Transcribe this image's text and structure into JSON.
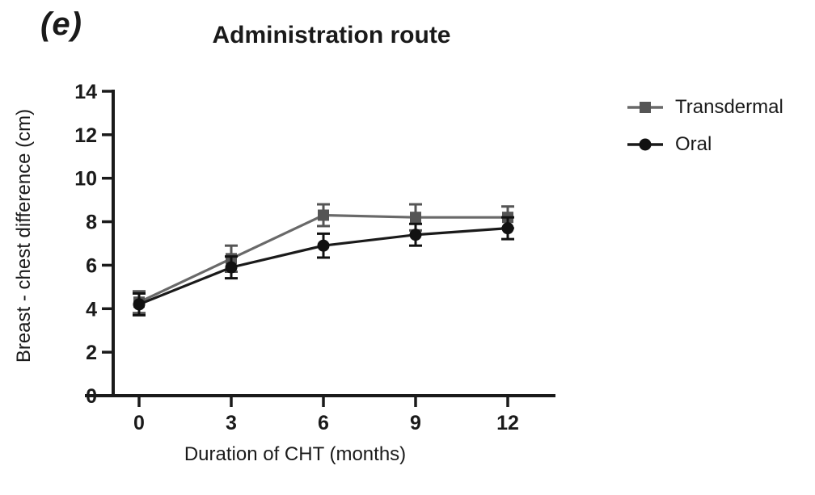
{
  "panel_label": "(e)",
  "chart_data": {
    "type": "line",
    "title": "Administration route",
    "xlabel": "Duration of CHT (months)",
    "ylabel": "Breast - chest difference (cm)",
    "x": [
      0,
      3,
      6,
      9,
      12
    ],
    "xticks": [
      0,
      3,
      6,
      9,
      12
    ],
    "yticks": [
      0,
      2,
      4,
      6,
      8,
      10,
      12,
      14
    ],
    "xlim": [
      0,
      12
    ],
    "ylim": [
      0,
      14
    ],
    "grid": false,
    "legend_position": "right-top",
    "axis_color": "#1a1a1a",
    "series": [
      {
        "name": "Transdermal",
        "marker": "square",
        "color": "#696969",
        "marker_color": "#555555",
        "values": [
          4.3,
          6.3,
          8.3,
          8.2,
          8.2
        ],
        "errors": [
          0.5,
          0.6,
          0.5,
          0.6,
          0.5
        ]
      },
      {
        "name": "Oral",
        "marker": "circle",
        "color": "#1a1a1a",
        "marker_color": "#111111",
        "values": [
          4.2,
          5.9,
          6.9,
          7.4,
          7.7
        ],
        "errors": [
          0.5,
          0.5,
          0.55,
          0.5,
          0.5
        ]
      }
    ]
  }
}
